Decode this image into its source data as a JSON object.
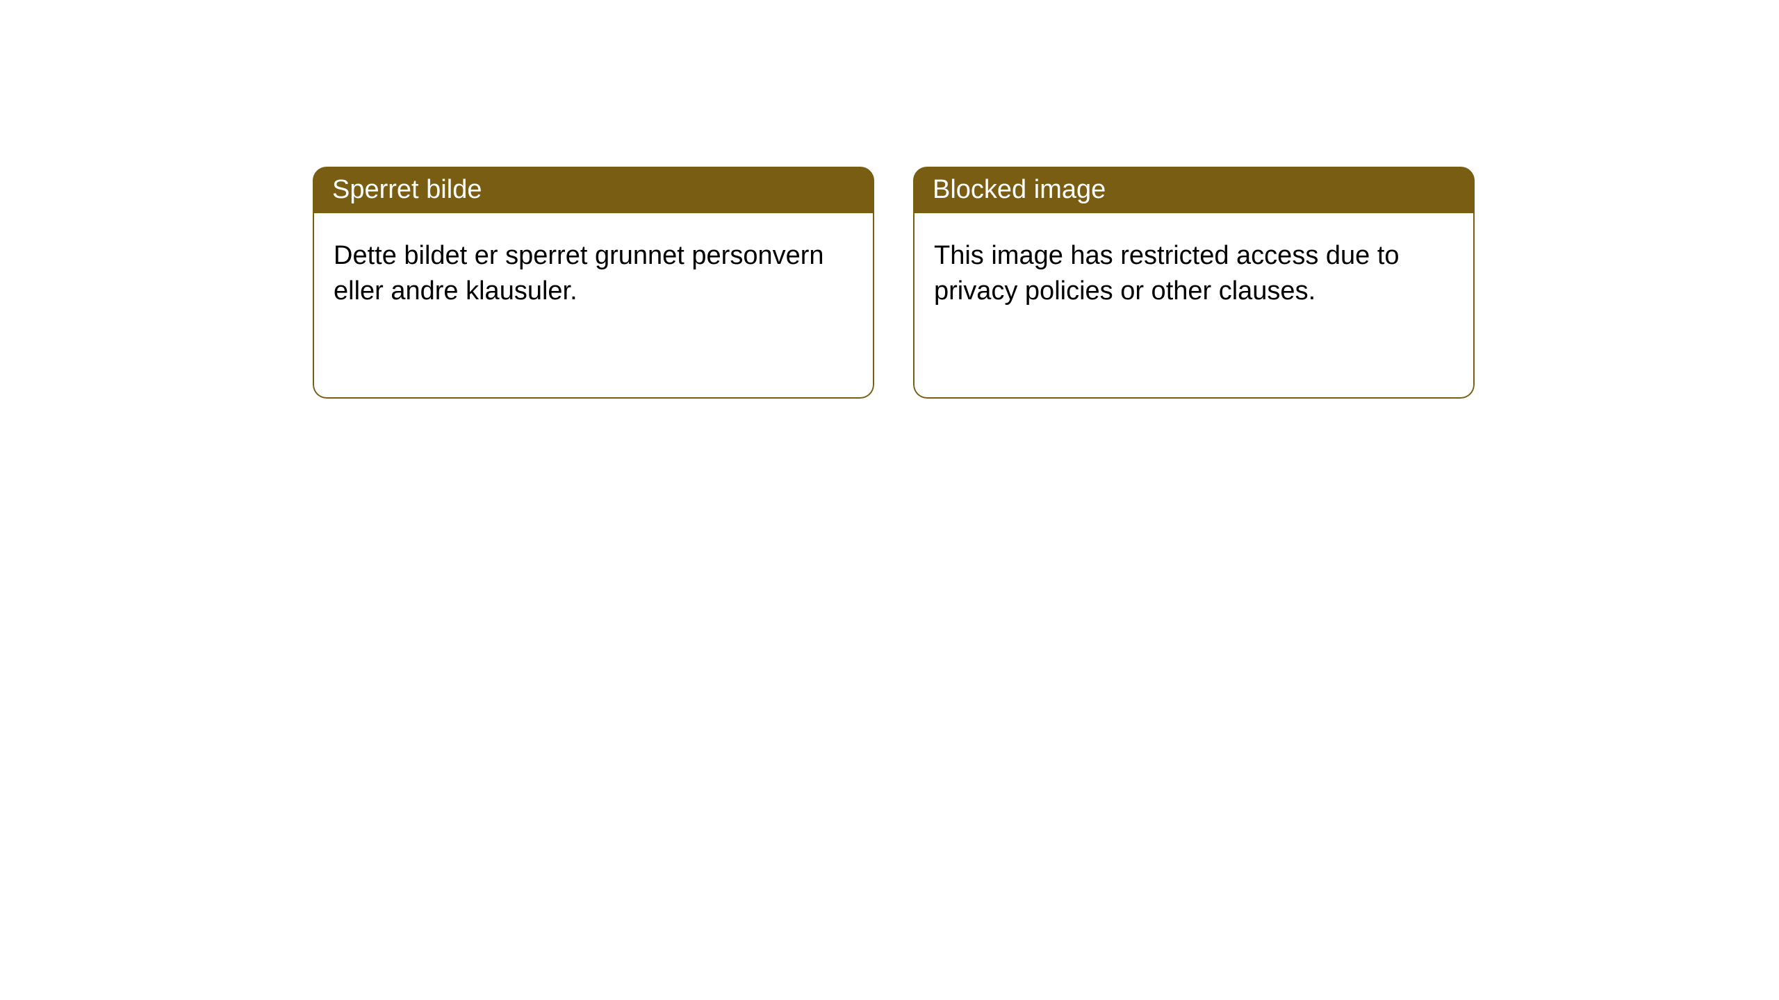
{
  "colors": {
    "header_bg": "#785d13",
    "header_text": "#ffffff",
    "body_text": "#000000",
    "body_bg": "#ffffff",
    "border": "#785d13"
  },
  "cards": [
    {
      "title": "Sperret bilde",
      "body": "Dette bildet er sperret grunnet personvern eller andre klausuler."
    },
    {
      "title": "Blocked image",
      "body": "This image has restricted access due to privacy policies or other clauses."
    }
  ]
}
